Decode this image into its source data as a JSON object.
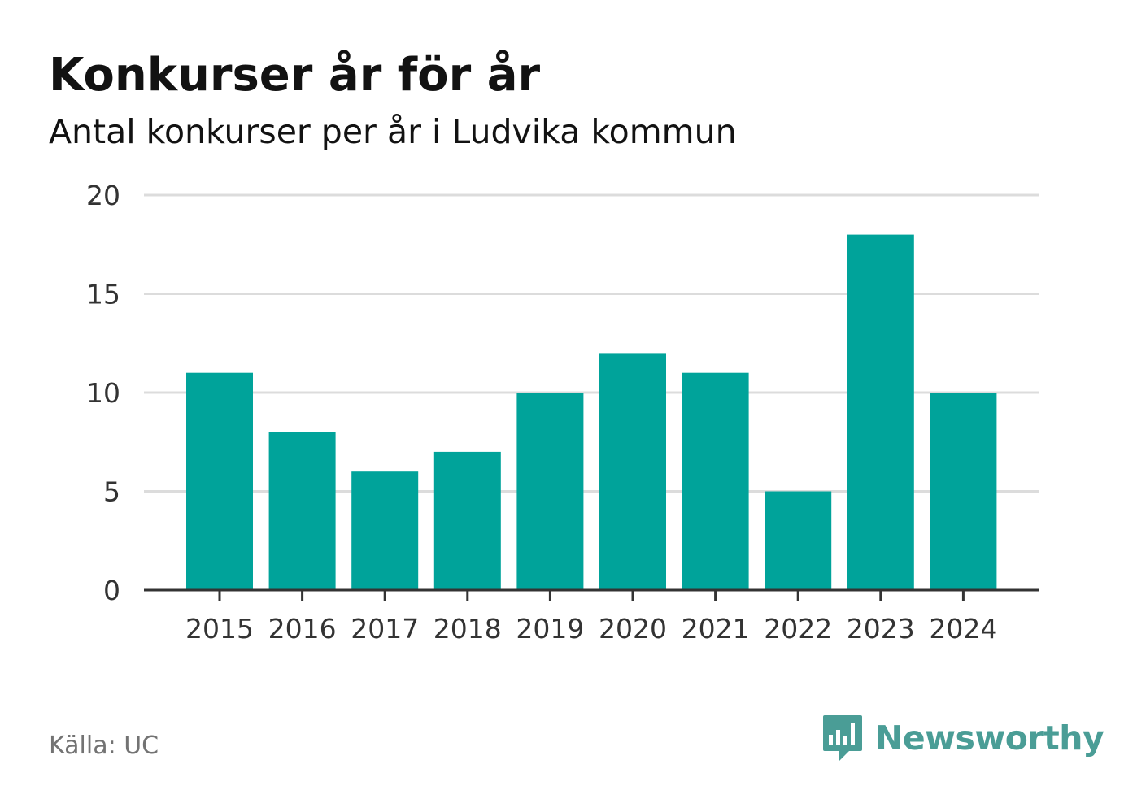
{
  "header": {
    "title": "Konkurser år för år",
    "subtitle": "Antal konkurser per år i Ludvika kommun"
  },
  "footer": {
    "source": "Källa: UC",
    "brand": "Newsworthy",
    "brand_icon": "bar-chart-speech-bubble-icon"
  },
  "colors": {
    "bar": "#00a39a",
    "grid": "#dcdcdc",
    "axis": "#333333",
    "text": "#333333",
    "brand": "#4a9d96"
  },
  "chart_data": {
    "type": "bar",
    "title": "Konkurser år för år",
    "subtitle": "Antal konkurser per år i Ludvika kommun",
    "categories": [
      "2015",
      "2016",
      "2017",
      "2018",
      "2019",
      "2020",
      "2021",
      "2022",
      "2023",
      "2024"
    ],
    "values": [
      11,
      8,
      6,
      7,
      10,
      12,
      11,
      5,
      18,
      10
    ],
    "ylim": [
      0,
      20
    ],
    "yticks": [
      0,
      5,
      10,
      15,
      20
    ],
    "grid": true,
    "legend": "none"
  }
}
